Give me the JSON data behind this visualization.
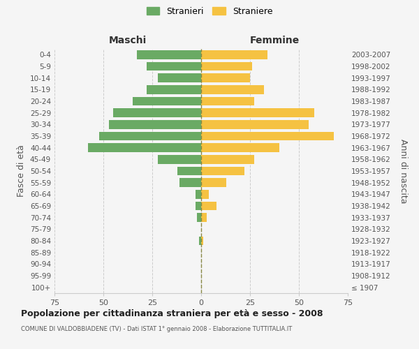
{
  "age_groups": [
    "100+",
    "95-99",
    "90-94",
    "85-89",
    "80-84",
    "75-79",
    "70-74",
    "65-69",
    "60-64",
    "55-59",
    "50-54",
    "45-49",
    "40-44",
    "35-39",
    "30-34",
    "25-29",
    "20-24",
    "15-19",
    "10-14",
    "5-9",
    "0-4"
  ],
  "birth_years": [
    "≤ 1907",
    "1908-1912",
    "1913-1917",
    "1918-1922",
    "1923-1927",
    "1928-1932",
    "1933-1937",
    "1938-1942",
    "1943-1947",
    "1948-1952",
    "1953-1957",
    "1958-1962",
    "1963-1967",
    "1968-1972",
    "1973-1977",
    "1978-1982",
    "1983-1987",
    "1988-1992",
    "1993-1997",
    "1998-2002",
    "2003-2007"
  ],
  "males": [
    0,
    0,
    0,
    0,
    1,
    0,
    2,
    3,
    3,
    11,
    12,
    22,
    58,
    52,
    47,
    45,
    35,
    28,
    22,
    28,
    33
  ],
  "females": [
    0,
    0,
    0,
    0,
    1,
    0,
    3,
    8,
    4,
    13,
    22,
    27,
    40,
    68,
    55,
    58,
    27,
    32,
    25,
    26,
    34
  ],
  "male_color": "#6aaa64",
  "female_color": "#f5c242",
  "bg_color": "#f5f5f5",
  "grid_color": "#cccccc",
  "title": "Popolazione per cittadinanza straniera per età e sesso - 2008",
  "subtitle": "COMUNE DI VALDOBBIADENE (TV) - Dati ISTAT 1° gennaio 2008 - Elaborazione TUTTITALIA.IT",
  "xlabel_left": "Maschi",
  "xlabel_right": "Femmine",
  "ylabel_left": "Fasce di età",
  "ylabel_right": "Anni di nascita",
  "legend_male": "Stranieri",
  "legend_female": "Straniere",
  "xlim": 75
}
